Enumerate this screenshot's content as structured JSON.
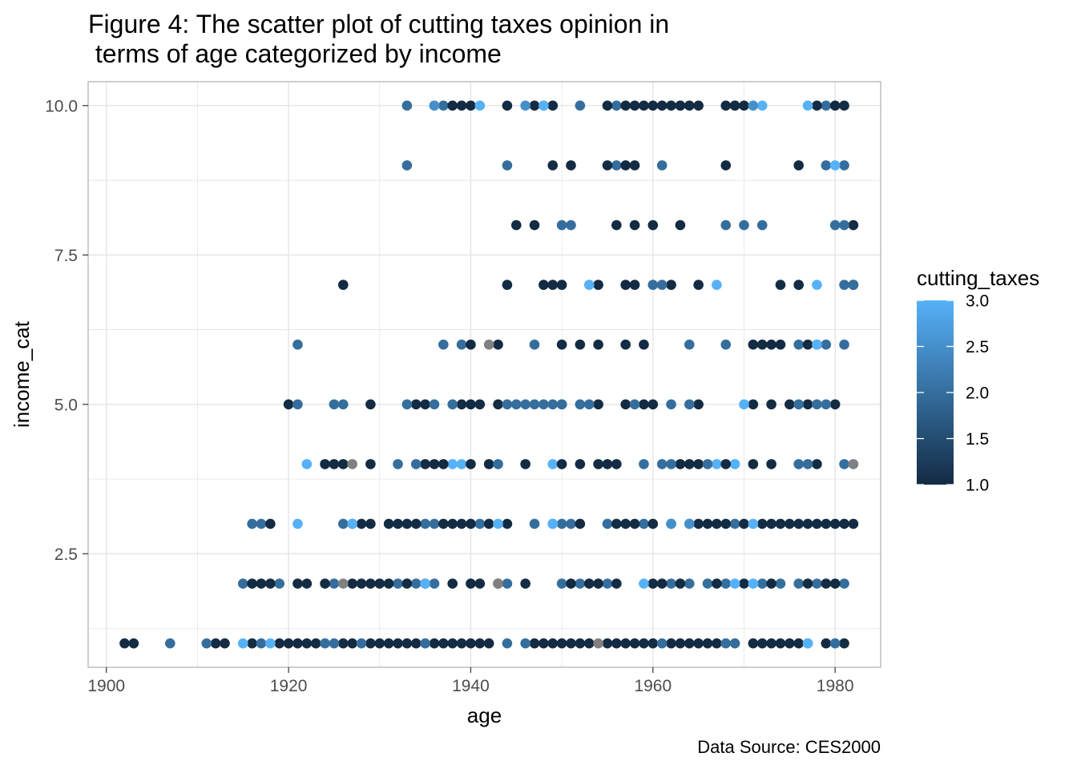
{
  "title_line1": "Figure 4: The scatter plot of cutting taxes opinion in",
  "title_line2": " terms of age categorized by income",
  "caption": "Data Source: CES2000",
  "colors": {
    "low": "#132B43",
    "high": "#56B1F7",
    "na": "#808080",
    "grid": "#e5e5e5",
    "panel_border": "#b3b3b3",
    "tick_text": "#4d4d4d"
  },
  "chart_data": {
    "type": "scatter",
    "title": "Figure 4: The scatter plot of cutting taxes opinion in terms of age categorized by income",
    "xlabel": "age",
    "ylabel": "income_cat",
    "xlim": [
      1898,
      1985
    ],
    "ylim": [
      0.6,
      10.4
    ],
    "x_ticks": [
      1900,
      1920,
      1940,
      1960,
      1980
    ],
    "x_tick_labels": [
      "1900",
      "1920",
      "1940",
      "1960",
      "1980"
    ],
    "y_ticks": [
      2.5,
      5.0,
      7.5,
      10.0
    ],
    "y_tick_labels": [
      "2.5",
      "5.0",
      "7.5",
      "10.0"
    ],
    "grid": true,
    "legend": {
      "title": "cutting_taxes",
      "position": "right",
      "type": "colorbar",
      "range": [
        1.0,
        3.0
      ],
      "ticks": [
        1.0,
        1.5,
        2.0,
        2.5,
        3.0
      ],
      "tick_labels": [
        "1.0",
        "1.5",
        "2.0",
        "2.5",
        "3.0"
      ]
    },
    "point_groups": [
      {
        "y": 10,
        "c": 2,
        "x": [
          1933,
          1937,
          1948,
          1952,
          1956,
          1963,
          1969,
          1979
        ]
      },
      {
        "y": 10,
        "c": 1,
        "x": [
          1938,
          1939,
          1940,
          1944,
          1947,
          1949,
          1955,
          1957,
          1958,
          1959,
          1960,
          1961,
          1962,
          1963,
          1964,
          1965,
          1968,
          1969,
          1970,
          1978,
          1980,
          1981
        ]
      },
      {
        "y": 10,
        "c": 3,
        "x": [
          1936,
          1941,
          1948,
          1972,
          1977
        ]
      },
      {
        "y": 10,
        "c": 2.5,
        "x": [
          1936,
          1946,
          1971
        ]
      },
      {
        "y": 9,
        "c": 2,
        "x": [
          1933,
          1944,
          1956,
          1961,
          1979,
          1981
        ]
      },
      {
        "y": 9,
        "c": 1,
        "x": [
          1949,
          1951,
          1955,
          1957,
          1958,
          1968,
          1976
        ]
      },
      {
        "y": 9,
        "c": 3,
        "x": [
          1980
        ]
      },
      {
        "y": 8,
        "c": 1,
        "x": [
          1945,
          1947,
          1956,
          1958,
          1960,
          1963,
          1982
        ]
      },
      {
        "y": 8,
        "c": 2,
        "x": [
          1950,
          1951,
          1968,
          1970,
          1972,
          1980,
          1981
        ]
      },
      {
        "y": 7,
        "c": 1,
        "x": [
          1926,
          1944,
          1948,
          1949,
          1950,
          1954,
          1957,
          1958,
          1962,
          1965,
          1974,
          1976,
          1982
        ]
      },
      {
        "y": 7,
        "c": 3,
        "x": [
          1953,
          1967,
          1978
        ]
      },
      {
        "y": 7,
        "c": 2,
        "x": [
          1960,
          1961,
          1981,
          1982
        ]
      },
      {
        "y": 6,
        "c": 2,
        "x": [
          1921,
          1937,
          1939,
          1947,
          1964,
          1968,
          1976,
          1979,
          1981
        ]
      },
      {
        "y": 6,
        "c": 1,
        "x": [
          1940,
          1943,
          1950,
          1952,
          1954,
          1957,
          1959,
          1971,
          1972,
          1973,
          1974,
          1977,
          1978
        ]
      },
      {
        "y": 6,
        "c": "na",
        "x": [
          1942
        ]
      },
      {
        "y": 6,
        "c": 3,
        "x": [
          1978
        ]
      },
      {
        "y": 5,
        "c": 1,
        "x": [
          1920,
          1929,
          1934,
          1935,
          1939,
          1940,
          1941,
          1943,
          1950,
          1954,
          1957,
          1959,
          1960,
          1965,
          1971,
          1973,
          1975,
          1977,
          1980
        ]
      },
      {
        "y": 5,
        "c": 2,
        "x": [
          1921,
          1925,
          1926,
          1933,
          1936,
          1938,
          1944,
          1945,
          1946,
          1947,
          1948,
          1949,
          1950,
          1952,
          1953,
          1958,
          1962,
          1964,
          1976,
          1978,
          1979
        ]
      },
      {
        "y": 5,
        "c": 3,
        "x": [
          1970
        ]
      },
      {
        "y": 4,
        "c": 3,
        "x": [
          1922,
          1938,
          1939,
          1949,
          1967,
          1969
        ]
      },
      {
        "y": 4,
        "c": 1,
        "x": [
          1924,
          1925,
          1926,
          1929,
          1935,
          1936,
          1937,
          1940,
          1942,
          1946,
          1950,
          1952,
          1954,
          1955,
          1956,
          1963,
          1964,
          1965,
          1968,
          1971,
          1973,
          1978
        ]
      },
      {
        "y": 4,
        "c": 2,
        "x": [
          1932,
          1934,
          1943,
          1959,
          1961,
          1962,
          1966,
          1976,
          1977,
          1981
        ]
      },
      {
        "y": 4,
        "c": "na",
        "x": [
          1927,
          1982
        ]
      },
      {
        "y": 3,
        "c": 2,
        "x": [
          1916,
          1917,
          1926,
          1935,
          1936,
          1941,
          1947,
          1949,
          1950,
          1951,
          1955,
          1959,
          1962,
          1964,
          1969
        ]
      },
      {
        "y": 3,
        "c": 1,
        "x": [
          1918,
          1927,
          1928,
          1929,
          1931,
          1932,
          1933,
          1934,
          1937,
          1938,
          1939,
          1940,
          1942,
          1944,
          1952,
          1956,
          1957,
          1958,
          1960,
          1965,
          1966,
          1967,
          1968,
          1970,
          1972,
          1973,
          1974,
          1975,
          1976,
          1977,
          1978,
          1979,
          1980,
          1981,
          1982
        ]
      },
      {
        "y": 3,
        "c": 3,
        "x": [
          1921,
          1927,
          1943,
          1949,
          1971
        ]
      },
      {
        "y": 3,
        "c": 2.5,
        "x": [
          1962,
          1964
        ]
      },
      {
        "y": 2,
        "c": 2,
        "x": [
          1915,
          1919,
          1925,
          1932,
          1934,
          1936,
          1944,
          1950,
          1952,
          1955,
          1962,
          1964,
          1966,
          1968,
          1972,
          1974,
          1976,
          1978,
          1981
        ]
      },
      {
        "y": 2,
        "c": 1,
        "x": [
          1916,
          1917,
          1918,
          1921,
          1922,
          1924,
          1927,
          1928,
          1929,
          1930,
          1931,
          1933,
          1935,
          1938,
          1940,
          1941,
          1943,
          1946,
          1951,
          1953,
          1954,
          1956,
          1960,
          1961,
          1963,
          1967,
          1970,
          1973,
          1977,
          1979,
          1980
        ]
      },
      {
        "y": 2,
        "c": 3,
        "x": [
          1935,
          1959,
          1969,
          1971
        ]
      },
      {
        "y": 2,
        "c": "na",
        "x": [
          1926,
          1943
        ]
      },
      {
        "y": 1,
        "c": 1,
        "x": [
          1902,
          1903,
          1912,
          1913,
          1916,
          1919,
          1920,
          1921,
          1922,
          1923,
          1926,
          1927,
          1929,
          1930,
          1931,
          1932,
          1933,
          1934,
          1936,
          1937,
          1938,
          1939,
          1940,
          1941,
          1942,
          1947,
          1948,
          1949,
          1950,
          1951,
          1952,
          1953,
          1955,
          1956,
          1957,
          1958,
          1959,
          1960,
          1962,
          1963,
          1964,
          1965,
          1966,
          1967,
          1971,
          1972,
          1973,
          1974,
          1975,
          1976,
          1979,
          1981
        ]
      },
      {
        "y": 1,
        "c": 2,
        "x": [
          1907,
          1911,
          1917,
          1924,
          1925,
          1928,
          1935,
          1944,
          1946,
          1961,
          1968,
          1969,
          1977,
          1980
        ]
      },
      {
        "y": 1,
        "c": 3,
        "x": [
          1915,
          1918,
          1977
        ]
      },
      {
        "y": 1,
        "c": "na",
        "x": [
          1954
        ]
      }
    ]
  }
}
